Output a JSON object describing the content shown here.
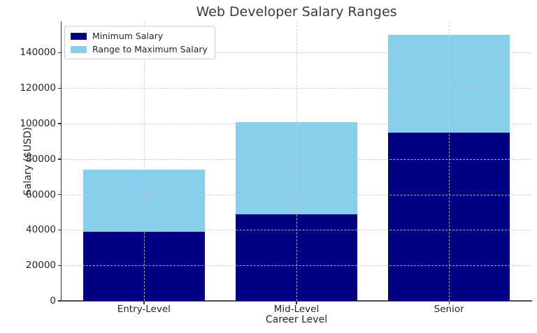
{
  "chart_data": {
    "type": "bar",
    "stacked": true,
    "title": "Web Developer Salary Ranges",
    "xlabel": "Career Level",
    "ylabel": "Salary ($USD)",
    "categories": [
      "Entry-Level",
      "Mid-Level",
      "Senior"
    ],
    "series": [
      {
        "name": "Minimum Salary",
        "color": "#000080",
        "values": [
          39000,
          49000,
          95000
        ]
      },
      {
        "name": "Range to Maximum Salary",
        "color": "#87CEEB",
        "values": [
          35000,
          52000,
          55000
        ]
      }
    ],
    "minimum_salaries": [
      39000,
      49000,
      95000
    ],
    "maximum_salaries": [
      74000,
      101000,
      150000
    ],
    "ylim": [
      0,
      157500
    ],
    "yticks": [
      0,
      20000,
      40000,
      60000,
      80000,
      100000,
      120000,
      140000
    ],
    "grid": true,
    "grid_style": "dashed",
    "grid_above_bars": true,
    "legend_position": "upper-left",
    "bar_width_fraction": 0.8,
    "background": "#ffffff"
  }
}
